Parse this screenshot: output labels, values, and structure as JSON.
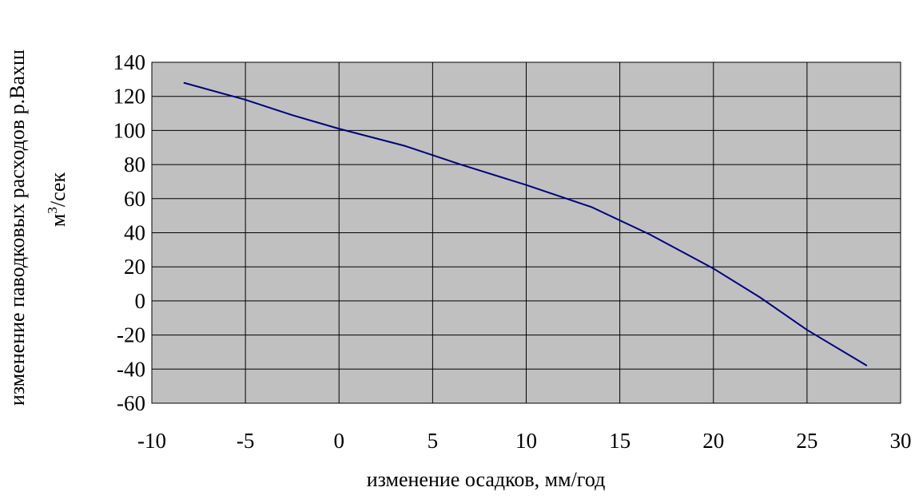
{
  "chart_data": {
    "type": "line",
    "title": "",
    "xlabel": "изменение осадков, мм/год",
    "ylabel_line1": "изменение паводковых расходов р.Вахш",
    "ylabel_line2_unit": "м",
    "ylabel_line2_sup": "3",
    "ylabel_line2_rest": "/сек",
    "xlim": [
      -10,
      30
    ],
    "ylim": [
      -60,
      140
    ],
    "x_ticks": [
      -10,
      -5,
      0,
      5,
      10,
      15,
      20,
      25,
      30
    ],
    "y_ticks": [
      140,
      120,
      100,
      80,
      60,
      40,
      20,
      0,
      -20,
      -40,
      -60
    ],
    "grid": true,
    "legend": "none",
    "series": [
      {
        "x": [
          -8.3,
          -5,
          -2.5,
          0,
          3.5,
          6.5,
          10,
          13.5,
          16.6,
          20,
          22.5,
          25,
          28.2
        ],
        "y": [
          128,
          118,
          109,
          101,
          91,
          80,
          68,
          55,
          39,
          19,
          2,
          -17,
          -38
        ]
      }
    ],
    "colors": {
      "plot_background": "#c0c0c0",
      "line": "#000080",
      "grid": "#000000"
    }
  }
}
